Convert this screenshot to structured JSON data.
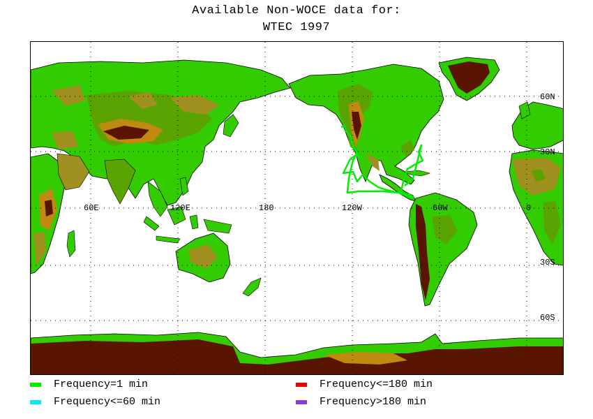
{
  "title": {
    "line1": "Available Non-WOCE data for:",
    "line2": "WTEC 1997"
  },
  "map": {
    "lon_labels": [
      "60E",
      "120E",
      "180",
      "120W",
      "60W",
      "0"
    ],
    "lat_labels": [
      "60N",
      "30N",
      "30S",
      "60S"
    ],
    "colors": {
      "ocean": "#ffffff",
      "lowland": "#33cc00",
      "mid": "#5aa300",
      "upland": "#a09020",
      "highland": "#c08a10",
      "mountain": "#5a1500",
      "ice": "#3a0500",
      "coast": "#000000",
      "grid": "#000000"
    }
  },
  "legend": [
    {
      "label": "Frequency=1 min",
      "color": "#00ee00"
    },
    {
      "label": "Frequency<=180 min",
      "color": "#ee0000"
    },
    {
      "label": "Frequency<=60 min",
      "color": "#00eeee"
    },
    {
      "label": "Frequency>180 min",
      "color": "#8040e0"
    }
  ]
}
